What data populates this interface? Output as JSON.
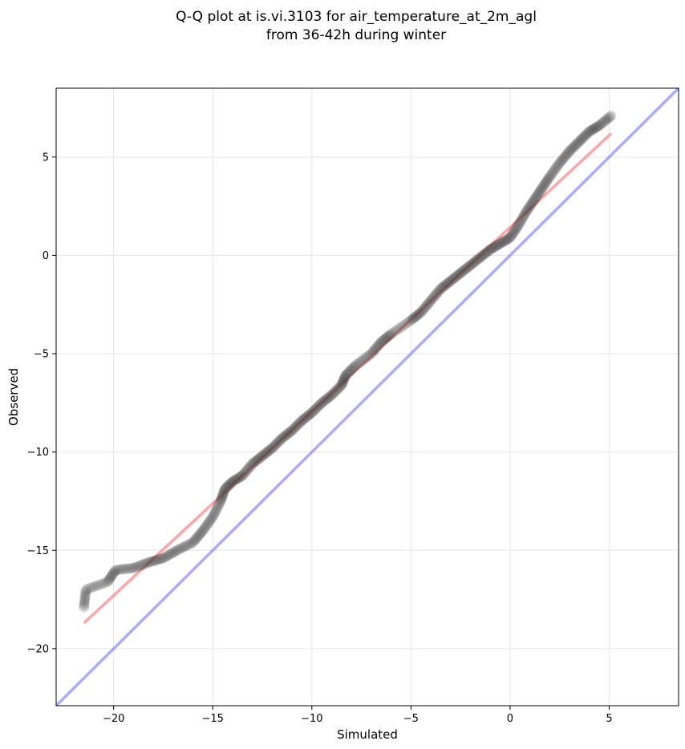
{
  "chart_data": {
    "type": "scatter",
    "title_lines": [
      "Q-Q plot at is.vi.3103 for air_temperature_at_2m_agl",
      "from 36-42h during winter"
    ],
    "xlabel": "Simulated",
    "ylabel": "Observed",
    "xlim": [
      -22.9,
      8.5
    ],
    "ylim": [
      -22.9,
      8.5
    ],
    "xticks": [
      -20,
      -15,
      -10,
      -5,
      0,
      5
    ],
    "yticks": [
      -20,
      -15,
      -10,
      -5,
      0,
      5
    ],
    "xtick_labels": [
      "−20",
      "−15",
      "−10",
      "−5",
      "0",
      "5"
    ],
    "ytick_labels": [
      "−20",
      "−15",
      "−10",
      "−5",
      "0",
      "5"
    ],
    "grid": true,
    "colors": {
      "points": "#3a3a3a",
      "fit_line": "#ff6b6b",
      "identity_line": "#6666ff",
      "grid": "#e6e6e6"
    },
    "quantile_knots": [
      [
        -21.5,
        -17.9
      ],
      [
        -21.4,
        -17.0
      ],
      [
        -20.3,
        -16.6
      ],
      [
        -19.9,
        -16.0
      ],
      [
        -19.0,
        -15.9
      ],
      [
        -18.2,
        -15.6
      ],
      [
        -17.5,
        -15.4
      ],
      [
        -16.8,
        -15.0
      ],
      [
        -16.0,
        -14.6
      ],
      [
        -15.5,
        -14.0
      ],
      [
        -15.0,
        -13.3
      ],
      [
        -14.6,
        -12.5
      ],
      [
        -14.4,
        -11.9
      ],
      [
        -14.0,
        -11.5
      ],
      [
        -13.5,
        -11.2
      ],
      [
        -13.0,
        -10.6
      ],
      [
        -12.5,
        -10.2
      ],
      [
        -12.0,
        -9.8
      ],
      [
        -11.5,
        -9.3
      ],
      [
        -11.0,
        -8.9
      ],
      [
        -10.5,
        -8.4
      ],
      [
        -10.0,
        -8.0
      ],
      [
        -9.5,
        -7.5
      ],
      [
        -9.0,
        -7.1
      ],
      [
        -8.5,
        -6.6
      ],
      [
        -8.3,
        -6.1
      ],
      [
        -7.8,
        -5.6
      ],
      [
        -7.0,
        -5.0
      ],
      [
        -6.5,
        -4.4
      ],
      [
        -6.0,
        -4.0
      ],
      [
        -5.0,
        -3.3
      ],
      [
        -4.5,
        -2.9
      ],
      [
        -4.0,
        -2.3
      ],
      [
        -3.5,
        -1.7
      ],
      [
        -3.0,
        -1.3
      ],
      [
        -2.5,
        -0.9
      ],
      [
        -2.0,
        -0.5
      ],
      [
        -1.5,
        -0.1
      ],
      [
        -1.0,
        0.3
      ],
      [
        -0.5,
        0.6
      ],
      [
        0.0,
        0.9
      ],
      [
        0.4,
        1.5
      ],
      [
        0.8,
        2.2
      ],
      [
        1.2,
        2.8
      ],
      [
        1.6,
        3.4
      ],
      [
        2.0,
        4.0
      ],
      [
        2.5,
        4.7
      ],
      [
        3.0,
        5.3
      ],
      [
        3.5,
        5.8
      ],
      [
        4.0,
        6.3
      ],
      [
        4.5,
        6.6
      ],
      [
        5.1,
        7.1
      ]
    ],
    "n_points": 480,
    "fit_line": {
      "x": [
        -21.5,
        5.1
      ],
      "y": [
        -18.7,
        6.2
      ]
    },
    "identity_line": {
      "x": [
        -22.9,
        8.5
      ],
      "y": [
        -22.9,
        8.5
      ]
    }
  }
}
